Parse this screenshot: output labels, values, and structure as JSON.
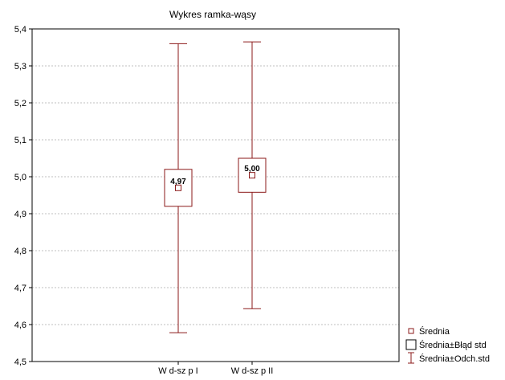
{
  "chart_data": {
    "type": "box",
    "title": "Wykres ramka-wąsy",
    "xlabel": "",
    "ylabel": "",
    "ylim": [
      4.5,
      5.4
    ],
    "yticks": [
      "4,5",
      "4,6",
      "4,7",
      "4,8",
      "4,9",
      "5,0",
      "5,1",
      "5,2",
      "5,3",
      "5,4"
    ],
    "ytick_values": [
      4.5,
      4.6,
      4.7,
      4.8,
      4.9,
      5.0,
      5.1,
      5.2,
      5.3,
      5.4
    ],
    "grid": true,
    "categories": [
      "W d-sz p I",
      "W d-sz p II"
    ],
    "series": [
      {
        "category": "W d-sz p I",
        "mean": 4.97,
        "mean_label": "4,97",
        "se_low": 4.92,
        "se_high": 5.02,
        "sd_low": 4.578,
        "sd_high": 5.36
      },
      {
        "category": "W d-sz p II",
        "mean": 5.004,
        "mean_label": "5,00",
        "se_low": 4.958,
        "se_high": 5.05,
        "sd_low": 4.643,
        "sd_high": 5.365
      }
    ],
    "legend": {
      "placement": "bottom-right",
      "items": [
        {
          "marker": "small-square",
          "label": "Średnia"
        },
        {
          "marker": "box",
          "label": "Średnia±Błąd std"
        },
        {
          "marker": "whisker",
          "label": "Średnia±Odch.std"
        }
      ]
    },
    "colors": {
      "marks": "#8b1a1a",
      "grid": "#aaaaaa",
      "frame": "#000000"
    }
  }
}
